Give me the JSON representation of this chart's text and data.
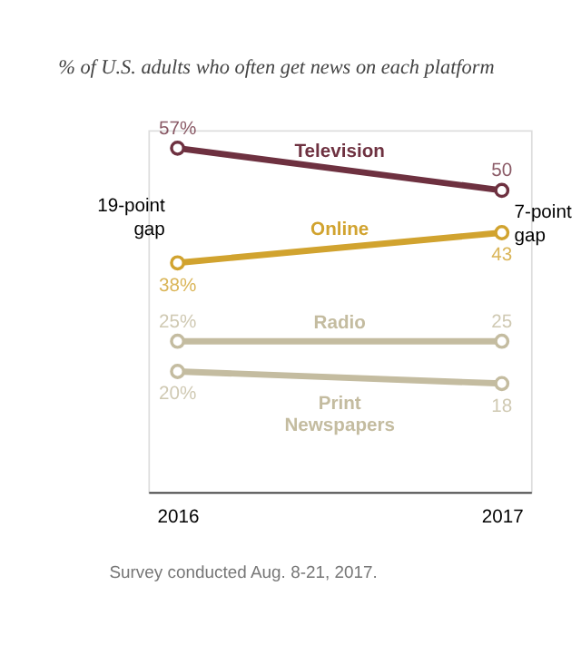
{
  "chart_data": {
    "type": "line",
    "title": "% of U.S. adults who often get news on each platform",
    "categories": [
      "2016",
      "2017"
    ],
    "tick_labels": "x",
    "grid": false,
    "marker": "circle",
    "series": [
      {
        "name": "Television",
        "color": "#6e3140",
        "values": [
          57,
          50
        ],
        "value_labels": [
          "57%",
          "50"
        ]
      },
      {
        "name": "Online",
        "color": "#d1a32f",
        "values": [
          38,
          43
        ],
        "value_labels": [
          "38%",
          "43"
        ]
      },
      {
        "name": "Radio",
        "color": "#c4bca0",
        "values": [
          25,
          25
        ],
        "value_labels": [
          "25%",
          "25"
        ]
      },
      {
        "name": "Print Newspapers",
        "color": "#c4bca0",
        "values": [
          20,
          18
        ],
        "value_labels": [
          "20%",
          "18"
        ]
      }
    ],
    "annotations": [
      "19-point gap",
      "7-point gap",
      "Survey conducted Aug. 8-21, 2017."
    ]
  }
}
